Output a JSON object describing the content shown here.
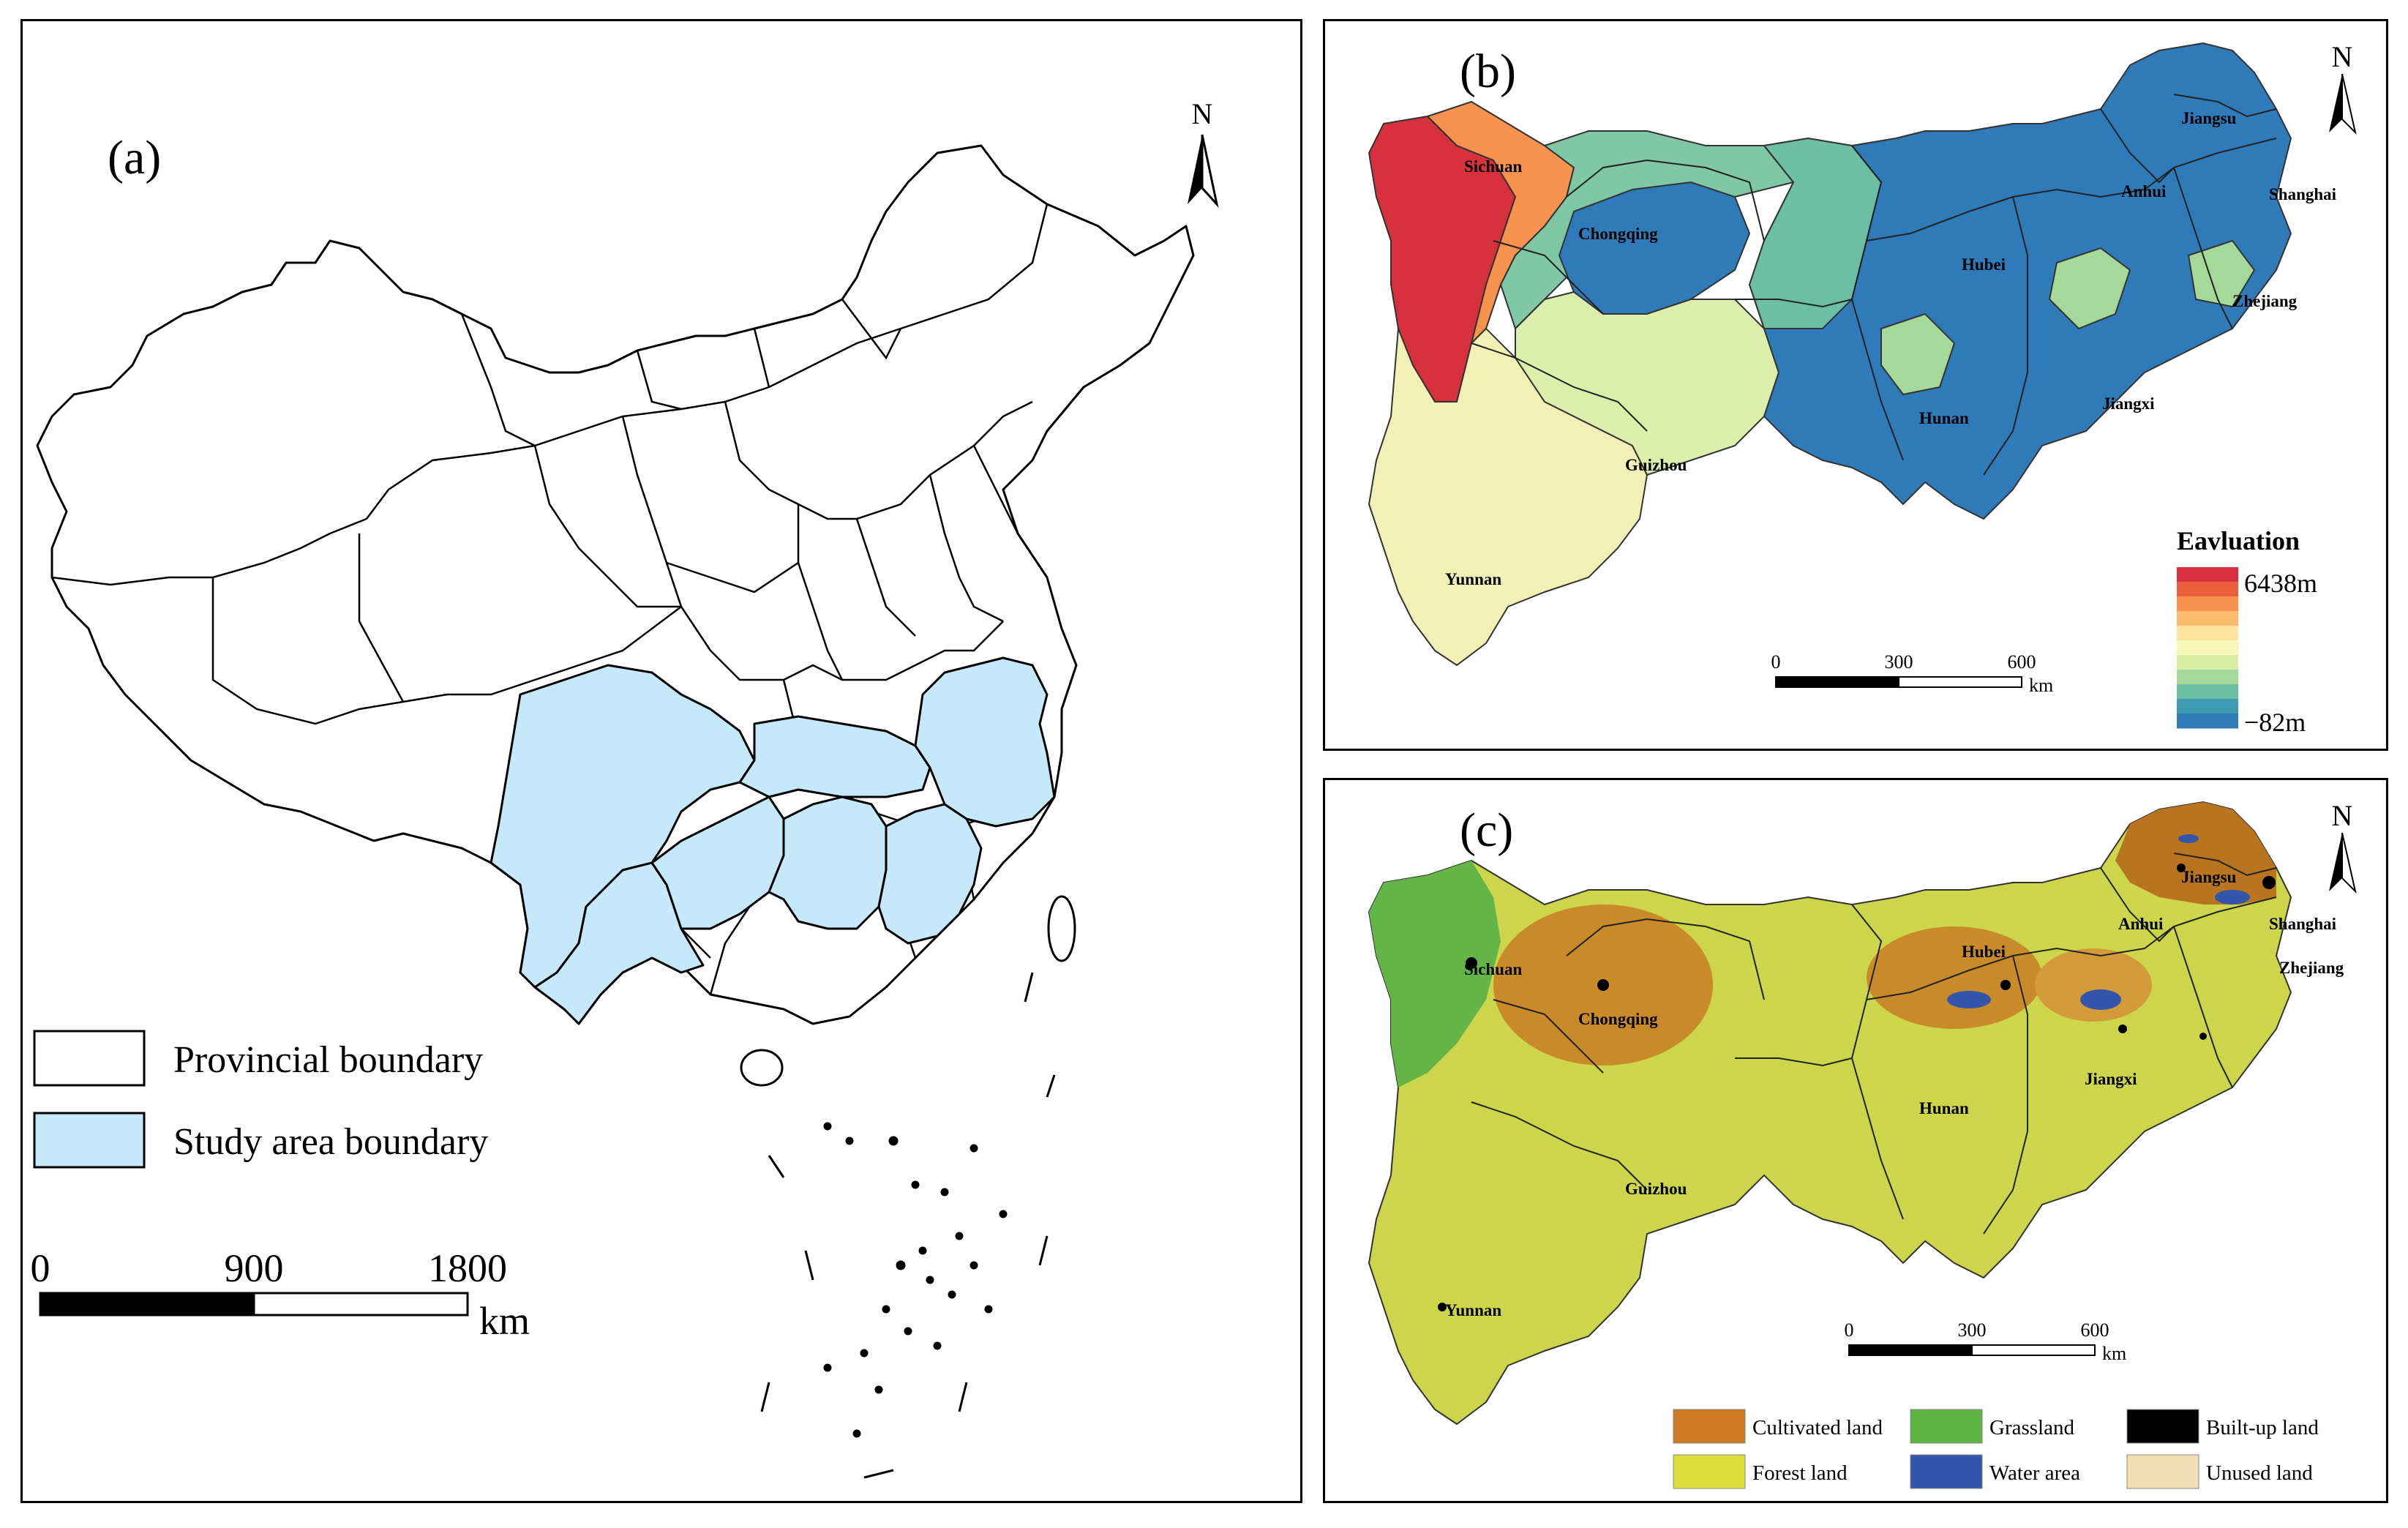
{
  "panel_a": {
    "label": "(a)",
    "north": "N",
    "legend": [
      {
        "label": "Provincial boundary",
        "color": "#ffffff"
      },
      {
        "label": "Study area boundary",
        "color": "#c6e8fb"
      }
    ],
    "scale": {
      "ticks": [
        "0",
        "900",
        "1800"
      ],
      "unit": "km"
    }
  },
  "panel_b": {
    "label": "(b)",
    "north": "N",
    "provinces": [
      "Sichuan",
      "Chongqing",
      "Guizhou",
      "Yunnan",
      "Hubei",
      "Hunan",
      "Jiangxi",
      "Anhui",
      "Jiangsu",
      "Shanghai",
      "Zhejiang"
    ],
    "legend": {
      "title": "Eavluation",
      "max": "6438m",
      "min": "−82m",
      "colors": [
        "#d7313e",
        "#ec5f3c",
        "#f7924f",
        "#fdbb70",
        "#fde39b",
        "#f7f7b8",
        "#d9efa6",
        "#a5d99a",
        "#6cbfa2",
        "#3e9ab5",
        "#2f7ab8"
      ]
    },
    "scale": {
      "ticks": [
        "0",
        "300",
        "600"
      ],
      "unit": "km"
    }
  },
  "panel_c": {
    "label": "(c)",
    "north": "N",
    "provinces": [
      "Sichuan",
      "Chongqing",
      "Guizhou",
      "Yunnan",
      "Hubei",
      "Hunan",
      "Jiangxi",
      "Anhui",
      "Jiangsu",
      "Shanghai",
      "Zhejiang"
    ],
    "legend": [
      {
        "label": "Cultivated land",
        "color": "#cc7a22"
      },
      {
        "label": "Grassland",
        "color": "#5db540"
      },
      {
        "label": "Built-up land",
        "color": "#000000"
      },
      {
        "label": "Forest land",
        "color": "#dede3a"
      },
      {
        "label": "Water area",
        "color": "#3355aa"
      },
      {
        "label": "Unused land",
        "color": "#f2dcb3"
      }
    ],
    "scale": {
      "ticks": [
        "0",
        "300",
        "600"
      ],
      "unit": "km"
    }
  }
}
